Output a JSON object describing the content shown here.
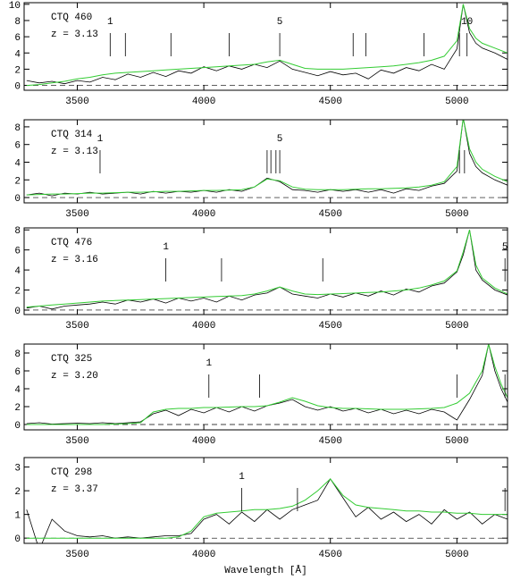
{
  "chart_data": [
    {
      "type": "line",
      "annotations": [
        "CTQ 460",
        "z = 3.13"
      ],
      "xlim": [
        3290,
        5200
      ],
      "xticks": [
        3500,
        4000,
        4500,
        5000
      ],
      "ylim": [
        -0.6,
        10.2
      ],
      "yticks": [
        0,
        2,
        4,
        6,
        8,
        10
      ],
      "x": [
        3300,
        3350,
        3400,
        3450,
        3500,
        3550,
        3600,
        3650,
        3700,
        3750,
        3800,
        3850,
        3900,
        3950,
        4000,
        4050,
        4100,
        4150,
        4200,
        4250,
        4300,
        4350,
        4400,
        4450,
        4500,
        4550,
        4600,
        4650,
        4700,
        4750,
        4800,
        4850,
        4900,
        4950,
        5000,
        5025,
        5050,
        5075,
        5100,
        5150,
        5200
      ],
      "series": [
        {
          "color": "#000000",
          "values": [
            0.6,
            0.3,
            0.5,
            0.2,
            0.6,
            0.4,
            1.0,
            0.7,
            1.4,
            1.0,
            1.6,
            1.1,
            1.8,
            1.5,
            2.3,
            1.8,
            2.4,
            2.0,
            2.6,
            2.2,
            3.0,
            2.0,
            1.6,
            1.2,
            1.7,
            1.3,
            1.5,
            0.8,
            1.9,
            1.5,
            2.2,
            1.8,
            2.6,
            2.0,
            4.5,
            10,
            6.5,
            5.2,
            4.6,
            4.0,
            3.2
          ]
        },
        {
          "color": "#33cc33",
          "values": [
            0,
            0.1,
            0.3,
            0.5,
            0.8,
            1.0,
            1.3,
            1.5,
            1.6,
            1.7,
            1.8,
            1.9,
            2.0,
            2.1,
            2.2,
            2.3,
            2.4,
            2.5,
            2.6,
            2.9,
            3.1,
            2.6,
            2.1,
            2.0,
            2.0,
            2.0,
            2.1,
            2.2,
            2.3,
            2.4,
            2.6,
            2.8,
            3.1,
            3.6,
            5.5,
            10,
            7.0,
            5.8,
            5.2,
            4.6,
            4.0
          ]
        }
      ],
      "line_markers": [
        {
          "value": 3630,
          "label": "1"
        },
        3690,
        3870,
        4100,
        {
          "value": 4300,
          "label": "5"
        },
        4590,
        4640,
        4870,
        5010,
        {
          "value": 5040,
          "label": "10"
        }
      ]
    },
    {
      "type": "line",
      "annotations": [
        "CTQ 314",
        "z = 3.13"
      ],
      "xlim": [
        3290,
        5200
      ],
      "xticks": [
        3500,
        4000,
        4500,
        5000
      ],
      "ylim": [
        -0.6,
        8.8
      ],
      "yticks": [
        0,
        2,
        4,
        6,
        8
      ],
      "x": [
        3300,
        3350,
        3400,
        3450,
        3500,
        3550,
        3600,
        3650,
        3700,
        3750,
        3800,
        3850,
        3900,
        3950,
        4000,
        4050,
        4100,
        4150,
        4200,
        4250,
        4300,
        4350,
        4400,
        4450,
        4500,
        4550,
        4600,
        4650,
        4700,
        4750,
        4800,
        4850,
        4900,
        4950,
        5000,
        5025,
        5050,
        5075,
        5100,
        5150,
        5200
      ],
      "series": [
        {
          "color": "#000000",
          "values": [
            0.3,
            0.5,
            0.2,
            0.5,
            0.4,
            0.6,
            0.4,
            0.5,
            0.6,
            0.4,
            0.7,
            0.5,
            0.7,
            0.6,
            0.8,
            0.6,
            0.9,
            0.7,
            1.2,
            2.2,
            1.8,
            0.9,
            0.8,
            0.6,
            0.9,
            0.7,
            0.9,
            0.6,
            0.9,
            0.5,
            1.0,
            0.8,
            1.3,
            1.6,
            3.0,
            9,
            5.0,
            3.5,
            2.8,
            2.0,
            1.4
          ]
        },
        {
          "color": "#33cc33",
          "values": [
            0.3,
            0.35,
            0.4,
            0.4,
            0.45,
            0.5,
            0.5,
            0.55,
            0.6,
            0.6,
            0.65,
            0.7,
            0.7,
            0.75,
            0.8,
            0.8,
            0.85,
            0.9,
            1.2,
            2.1,
            1.9,
            1.2,
            0.95,
            0.9,
            0.9,
            0.9,
            0.95,
            1.0,
            1.0,
            1.05,
            1.1,
            1.2,
            1.4,
            1.8,
            3.5,
            9,
            5.5,
            4.0,
            3.2,
            2.4,
            1.8
          ]
        }
      ],
      "line_markers": [
        {
          "value": 3590,
          "label": "1"
        },
        4250,
        4265,
        4285,
        {
          "value": 4300,
          "label": "5"
        },
        5010,
        5030
      ]
    },
    {
      "type": "line",
      "annotations": [
        "CTQ 476",
        "z = 3.16"
      ],
      "xlim": [
        3290,
        5200
      ],
      "xticks": [
        3500,
        4000,
        4500,
        5000
      ],
      "ylim": [
        -0.45,
        8.2
      ],
      "yticks": [
        0,
        2,
        4,
        6,
        8
      ],
      "x": [
        3300,
        3350,
        3400,
        3450,
        3500,
        3550,
        3600,
        3650,
        3700,
        3750,
        3800,
        3850,
        3900,
        3950,
        4000,
        4050,
        4100,
        4150,
        4200,
        4250,
        4300,
        4350,
        4400,
        4450,
        4500,
        4550,
        4600,
        4650,
        4700,
        4750,
        4800,
        4850,
        4900,
        4950,
        5000,
        5025,
        5050,
        5075,
        5100,
        5150,
        5200
      ],
      "series": [
        {
          "color": "#000000",
          "values": [
            0.2,
            0.4,
            0.1,
            0.4,
            0.5,
            0.6,
            0.8,
            0.6,
            1.0,
            0.8,
            1.1,
            0.7,
            1.2,
            0.9,
            1.2,
            0.8,
            1.4,
            1.0,
            1.5,
            1.7,
            2.3,
            1.6,
            1.4,
            1.2,
            1.6,
            1.3,
            1.7,
            1.4,
            1.9,
            1.5,
            2.1,
            1.8,
            2.4,
            2.7,
            3.8,
            5.5,
            8,
            4.0,
            3.0,
            2.0,
            1.5
          ]
        },
        {
          "color": "#33cc33",
          "values": [
            0.3,
            0.4,
            0.5,
            0.6,
            0.7,
            0.8,
            0.9,
            0.95,
            1.0,
            1.05,
            1.1,
            1.15,
            1.2,
            1.25,
            1.3,
            1.35,
            1.4,
            1.45,
            1.6,
            1.9,
            2.3,
            1.9,
            1.6,
            1.55,
            1.6,
            1.65,
            1.7,
            1.75,
            1.8,
            1.9,
            2.0,
            2.2,
            2.5,
            2.9,
            3.9,
            5.8,
            8,
            4.5,
            3.2,
            2.2,
            1.6
          ]
        }
      ],
      "line_markers": [
        {
          "value": 3850,
          "label": "1"
        },
        4070,
        4470,
        {
          "value": 5190,
          "label": "5"
        }
      ]
    },
    {
      "type": "line",
      "annotations": [
        "CTQ 325",
        "z = 3.20"
      ],
      "xlim": [
        3290,
        5200
      ],
      "xticks": [
        3500,
        4000,
        4500,
        5000
      ],
      "ylim": [
        -0.6,
        9
      ],
      "yticks": [
        0,
        2,
        4,
        6,
        8
      ],
      "x": [
        3300,
        3350,
        3400,
        3450,
        3500,
        3550,
        3600,
        3650,
        3700,
        3750,
        3800,
        3850,
        3900,
        3950,
        4000,
        4050,
        4100,
        4150,
        4200,
        4250,
        4300,
        4350,
        4400,
        4450,
        4500,
        4550,
        4600,
        4650,
        4700,
        4750,
        4800,
        4850,
        4900,
        4950,
        5000,
        5050,
        5100,
        5125,
        5150,
        5175,
        5200
      ],
      "series": [
        {
          "color": "#000000",
          "values": [
            0.1,
            0.2,
            0.05,
            0.1,
            0.15,
            0.1,
            0.2,
            0.1,
            0.2,
            0.3,
            1.2,
            1.6,
            1.0,
            1.7,
            1.3,
            1.9,
            1.4,
            2.0,
            1.5,
            2.1,
            2.4,
            2.8,
            2.0,
            1.6,
            2.0,
            1.5,
            1.8,
            1.3,
            1.7,
            1.2,
            1.6,
            1.2,
            1.7,
            1.4,
            0.5,
            2.8,
            5.5,
            9,
            6.0,
            4.0,
            2.5
          ]
        },
        {
          "color": "#33cc33",
          "values": [
            0,
            0,
            0,
            0,
            0,
            0,
            0,
            0.05,
            0.1,
            0.2,
            1.4,
            1.7,
            1.8,
            1.8,
            1.9,
            1.9,
            1.95,
            2.0,
            2.0,
            2.1,
            2.5,
            3.0,
            2.6,
            2.1,
            1.9,
            1.8,
            1.8,
            1.75,
            1.7,
            1.7,
            1.7,
            1.75,
            1.8,
            1.9,
            2.4,
            3.5,
            6.0,
            9,
            6.5,
            4.5,
            3.0
          ]
        }
      ],
      "line_markers": [
        {
          "value": 4020,
          "label": "1"
        },
        4220,
        5000,
        5190
      ]
    },
    {
      "type": "line",
      "annotations": [
        "CTQ 298",
        "z = 3.37"
      ],
      "xlabel": "Wavelength [Å]",
      "xlim": [
        3290,
        5200
      ],
      "xticks": [
        3500,
        4000,
        4500,
        5000
      ],
      "ylim": [
        -0.22,
        3.4
      ],
      "yticks": [
        0,
        1,
        2,
        3
      ],
      "x": [
        3300,
        3350,
        3400,
        3450,
        3500,
        3550,
        3600,
        3650,
        3700,
        3750,
        3800,
        3850,
        3900,
        3950,
        4000,
        4050,
        4100,
        4150,
        4200,
        4250,
        4300,
        4350,
        4400,
        4450,
        4500,
        4550,
        4600,
        4650,
        4700,
        4750,
        4800,
        4850,
        4900,
        4950,
        5000,
        5050,
        5100,
        5150,
        5200
      ],
      "series": [
        {
          "color": "#000000",
          "values": [
            1.2,
            -0.5,
            0.8,
            0.3,
            0.1,
            0.05,
            0.1,
            0.0,
            0.05,
            0.0,
            0.05,
            0.1,
            0.1,
            0.2,
            0.8,
            1.0,
            0.6,
            1.1,
            0.7,
            1.2,
            0.8,
            1.2,
            1.4,
            1.6,
            2.5,
            1.7,
            0.9,
            1.3,
            0.8,
            1.1,
            0.7,
            1.0,
            0.6,
            1.2,
            0.8,
            1.1,
            0.6,
            1.0,
            0.8
          ]
        },
        {
          "color": "#33cc33",
          "values": [
            0,
            0,
            0,
            0,
            0,
            0,
            0,
            0,
            0,
            0,
            0,
            0,
            0.05,
            0.3,
            0.9,
            1.05,
            1.1,
            1.15,
            1.2,
            1.2,
            1.25,
            1.35,
            1.6,
            2.0,
            2.5,
            1.8,
            1.4,
            1.3,
            1.25,
            1.2,
            1.15,
            1.15,
            1.1,
            1.1,
            1.05,
            1.05,
            1.0,
            1.0,
            1.0
          ]
        }
      ],
      "line_markers": [
        {
          "value": 4150,
          "label": "1"
        },
        4370,
        5190
      ]
    }
  ]
}
